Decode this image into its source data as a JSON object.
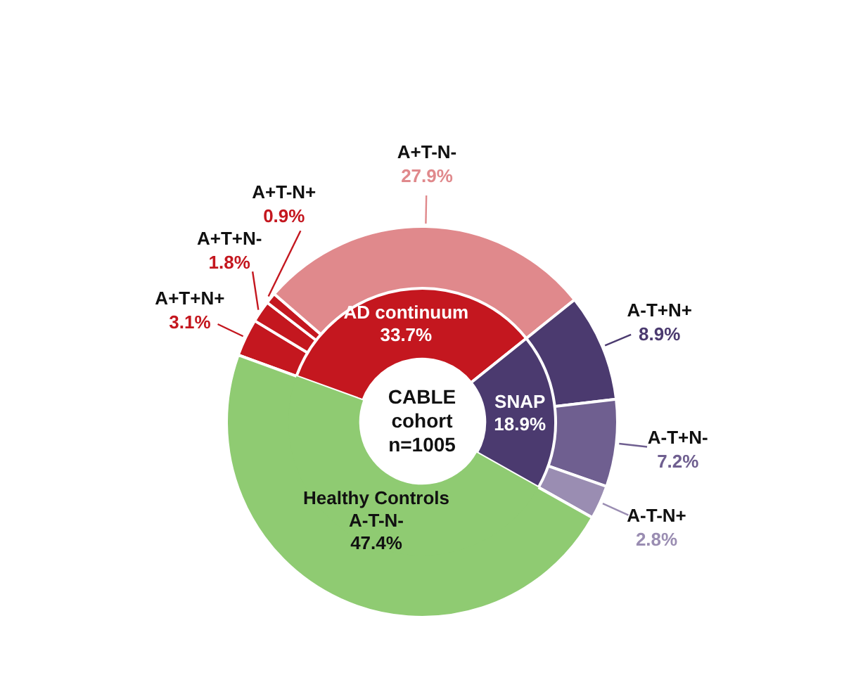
{
  "chart_data": [
    {
      "type": "donut",
      "categories": [
        "A+T+N+",
        "A+T+N-",
        "A+T-N+",
        "A+T-N-",
        "A-T+N+",
        "A-T+N-",
        "A-T-N+",
        null
      ],
      "values": [
        3.1,
        1.8,
        0.9,
        27.9,
        8.9,
        7.2,
        2.8,
        47.4
      ],
      "colors": [
        "#c4171f",
        "#c4171f",
        "#c4171f",
        "#e0898c",
        "#4b3a6f",
        "#6f5f90",
        "#9a8db2",
        "#8fcb72"
      ],
      "value_labels": [
        "3.1%",
        "1.8%",
        "0.9%",
        "27.9%",
        "8.9%",
        "7.2%",
        "2.8%",
        null
      ]
    },
    {
      "type": "donut",
      "categories": [
        "AD continuum",
        "SNAP",
        "Healthy Controls\nA-T-N-"
      ],
      "values": [
        33.7,
        18.9,
        47.4
      ],
      "colors": [
        "#c4171f",
        "#4b3a6f",
        "#8fcb72"
      ],
      "value_labels": [
        "33.7%",
        "18.9%",
        "47.4%"
      ],
      "annotations": [
        "CABLE\ncohort\nn=1005"
      ]
    }
  ]
}
